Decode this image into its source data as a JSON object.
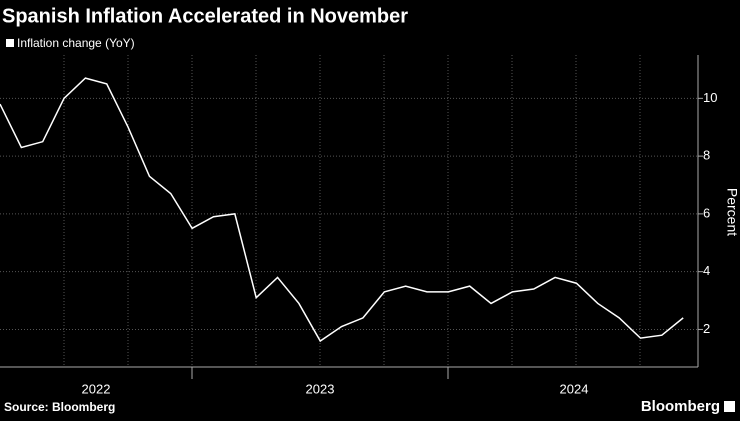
{
  "chart_data": {
    "type": "line",
    "title": "Spanish Inflation Accelerated in November",
    "categories": [
      null,
      null,
      null,
      null,
      null,
      null,
      null,
      null,
      null,
      null,
      null,
      null,
      null,
      null,
      null,
      null,
      null,
      null,
      null,
      null,
      null,
      null,
      null,
      null,
      null,
      null,
      null,
      null,
      null,
      null,
      null,
      null,
      null
    ],
    "year_labels": [
      "2022",
      "2023",
      "2024"
    ],
    "series": [
      {
        "name": "Inflation change (YoY)",
        "color": "#ffffff",
        "values": [
          9.8,
          8.3,
          8.5,
          10.0,
          10.7,
          10.5,
          9.0,
          7.3,
          6.7,
          5.5,
          5.9,
          6.0,
          3.1,
          3.8,
          2.9,
          1.6,
          2.1,
          2.4,
          3.3,
          3.5,
          3.3,
          3.3,
          3.5,
          2.9,
          3.3,
          3.4,
          3.8,
          3.6,
          2.9,
          2.4,
          1.7,
          1.8,
          2.4
        ]
      }
    ],
    "ylabel": "Percent",
    "ylim": [
      0.7,
      11.5
    ],
    "yticks": [
      2,
      4,
      6,
      8,
      10
    ],
    "grid": true,
    "source": "Source: Bloomberg",
    "brand": "Bloomberg"
  }
}
